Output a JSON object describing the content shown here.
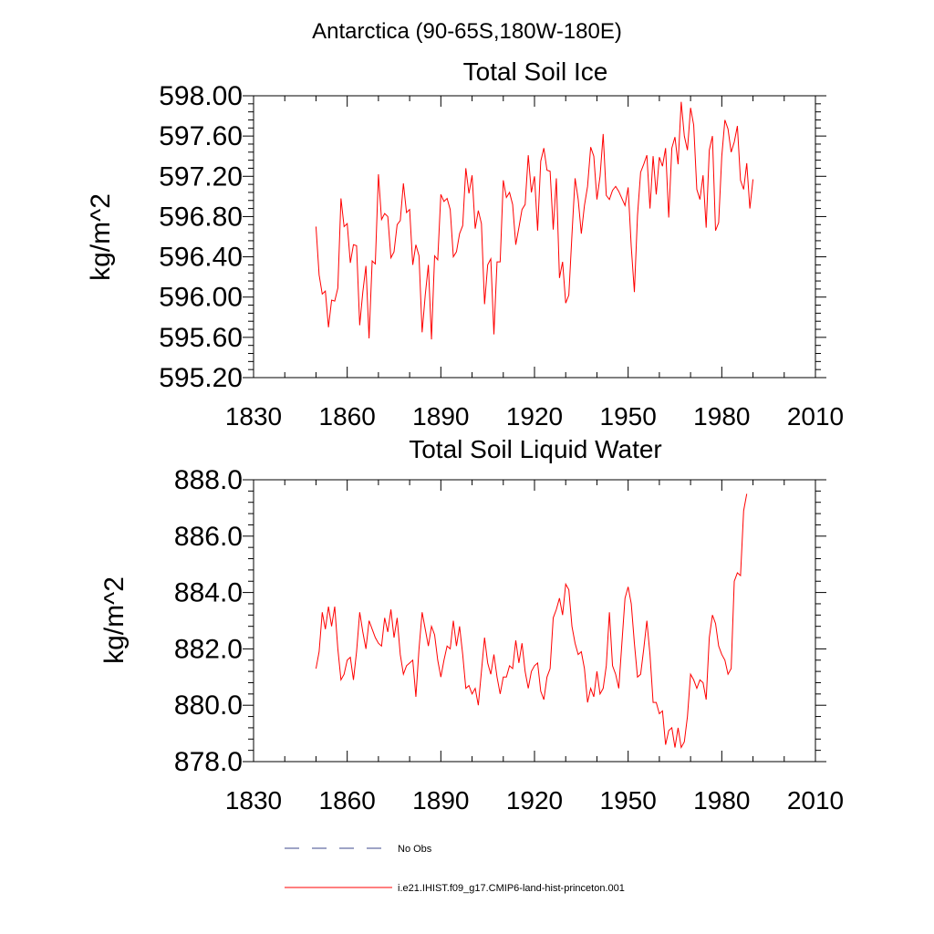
{
  "page_title": "Antarctica (90-65S,180W-180E)",
  "colors": {
    "series": "#ff0000",
    "obs": "#3c4a8c",
    "axis": "#000000"
  },
  "legend": {
    "placement": "bottom-left",
    "entries": [
      {
        "label": "No Obs",
        "style": "dashed",
        "color": "#3c4a8c"
      },
      {
        "label": "i.e21.IHIST.f09_g17.CMIP6-land-hist-princeton.001",
        "style": "solid",
        "color": "#ff0000"
      }
    ]
  },
  "chart_data": [
    {
      "type": "line",
      "title": "Total Soil Ice",
      "ylabel": "kg/m^2",
      "xlim": [
        1830,
        2010
      ],
      "ylim": [
        595.2,
        598.0
      ],
      "xticks": [
        1830,
        1860,
        1890,
        1920,
        1950,
        1980,
        2010
      ],
      "yticks": [
        595.2,
        595.6,
        596.0,
        596.4,
        596.8,
        597.2,
        597.6,
        598.0
      ],
      "ytick_labels": [
        "595.20",
        "595.60",
        "596.00",
        "596.40",
        "596.80",
        "597.20",
        "597.60",
        "598.00"
      ],
      "grid": false,
      "series": [
        {
          "name": "i.e21.IHIST.f09_g17.CMIP6-land-hist-princeton.001",
          "x_start": 1850,
          "x_step": 1,
          "values": [
            596.7,
            596.22,
            596.03,
            596.06,
            595.7,
            595.97,
            595.96,
            596.09,
            596.98,
            596.7,
            596.73,
            596.34,
            596.52,
            596.51,
            595.72,
            596.05,
            596.31,
            595.59,
            596.36,
            596.33,
            597.22,
            596.77,
            596.83,
            596.8,
            596.39,
            596.45,
            596.72,
            596.76,
            597.13,
            596.84,
            596.87,
            596.32,
            596.52,
            596.41,
            595.65,
            596.02,
            596.32,
            595.58,
            596.41,
            596.37,
            597.02,
            596.95,
            596.98,
            596.87,
            596.4,
            596.45,
            596.63,
            596.71,
            597.28,
            597.03,
            597.21,
            596.68,
            596.86,
            596.73,
            595.93,
            596.32,
            596.38,
            595.63,
            596.35,
            596.35,
            597.16,
            596.99,
            597.04,
            596.92,
            596.52,
            596.69,
            596.87,
            596.92,
            597.41,
            597.04,
            597.2,
            596.66,
            597.35,
            597.48,
            597.26,
            597.25,
            596.67,
            597.18,
            596.19,
            596.35,
            595.94,
            596.02,
            596.62,
            597.18,
            596.97,
            596.63,
            596.91,
            597.1,
            597.49,
            597.4,
            596.97,
            597.2,
            597.62,
            597.01,
            596.97,
            597.06,
            597.1,
            597.05,
            596.98,
            596.91,
            597.09,
            596.5,
            596.05,
            596.81,
            597.24,
            597.32,
            597.41,
            596.88,
            597.4,
            597.02,
            597.39,
            597.3,
            597.48,
            596.79,
            597.48,
            597.59,
            597.32,
            597.94,
            597.6,
            597.46,
            597.88,
            597.71,
            597.07,
            596.97,
            597.21,
            596.69,
            597.46,
            597.6,
            596.66,
            596.74,
            597.4,
            597.76,
            597.67,
            597.44,
            597.54,
            597.7,
            597.16,
            597.07,
            597.33,
            596.88,
            597.17
          ]
        }
      ]
    },
    {
      "type": "line",
      "title": "Total Soil Liquid Water",
      "ylabel": "kg/m^2",
      "xlim": [
        1830,
        2010
      ],
      "ylim": [
        878.0,
        888.0
      ],
      "xticks": [
        1830,
        1860,
        1890,
        1920,
        1950,
        1980,
        2010
      ],
      "yticks": [
        878.0,
        880.0,
        882.0,
        884.0,
        886.0,
        888.0
      ],
      "ytick_labels": [
        "878.0",
        "880.0",
        "882.0",
        "884.0",
        "886.0",
        "888.0"
      ],
      "grid": false,
      "series": [
        {
          "name": "i.e21.IHIST.f09_g17.CMIP6-land-hist-princeton.001",
          "x_start": 1850,
          "x_step": 1,
          "values": [
            881.3,
            881.9,
            883.3,
            882.7,
            883.5,
            882.8,
            883.5,
            882.0,
            880.9,
            881.1,
            881.6,
            881.7,
            880.9,
            881.9,
            883.3,
            882.6,
            882.0,
            883.0,
            882.7,
            882.4,
            882.2,
            882.1,
            883.1,
            882.6,
            883.4,
            882.4,
            883.1,
            881.8,
            881.1,
            881.4,
            881.5,
            881.6,
            880.3,
            882.0,
            883.3,
            882.7,
            882.1,
            882.8,
            882.5,
            881.6,
            881.0,
            881.6,
            882.1,
            882.0,
            883.0,
            882.1,
            882.8,
            881.8,
            880.6,
            880.7,
            880.4,
            880.6,
            880.0,
            881.2,
            882.4,
            881.5,
            881.1,
            881.8,
            881.0,
            880.4,
            881.0,
            881.0,
            881.4,
            881.3,
            882.3,
            881.5,
            882.2,
            881.2,
            880.6,
            881.2,
            881.4,
            881.5,
            880.5,
            880.2,
            881.0,
            881.3,
            883.1,
            883.4,
            883.8,
            883.2,
            884.3,
            884.1,
            882.8,
            882.2,
            881.8,
            881.9,
            881.3,
            880.1,
            880.6,
            880.3,
            881.2,
            880.4,
            880.6,
            881.4,
            883.3,
            881.4,
            881.1,
            880.6,
            882.2,
            883.8,
            884.2,
            883.6,
            882.2,
            881.0,
            881.1,
            882.0,
            883.0,
            881.8,
            880.1,
            880.1,
            879.7,
            879.8,
            878.6,
            879.1,
            879.2,
            878.5,
            879.2,
            878.5,
            878.7,
            879.6,
            881.1,
            880.9,
            880.6,
            880.9,
            880.8,
            880.2,
            882.4,
            883.2,
            882.9,
            882.1,
            881.8,
            881.6,
            881.1,
            881.3,
            884.4,
            884.7,
            884.6,
            886.9,
            887.5
          ]
        }
      ]
    }
  ]
}
